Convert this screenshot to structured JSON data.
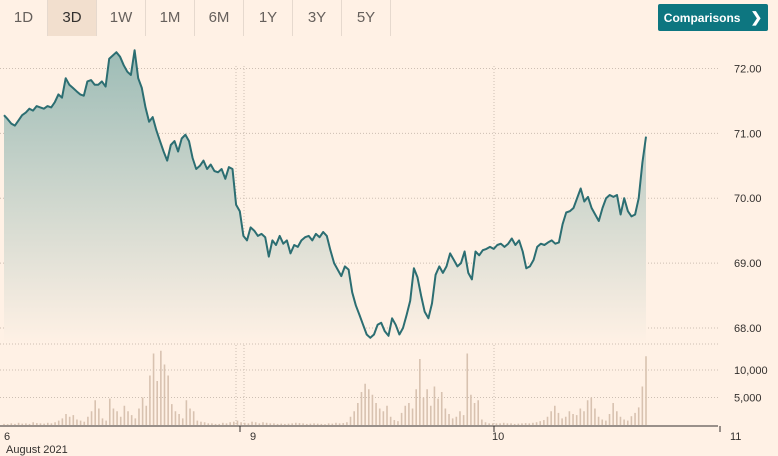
{
  "toolbar": {
    "tabs": [
      {
        "label": "1D",
        "active": false
      },
      {
        "label": "3D",
        "active": true
      },
      {
        "label": "1W",
        "active": false
      },
      {
        "label": "1M",
        "active": false
      },
      {
        "label": "6M",
        "active": false
      },
      {
        "label": "1Y",
        "active": false
      },
      {
        "label": "3Y",
        "active": false
      },
      {
        "label": "5Y",
        "active": false
      }
    ],
    "comparisons_label": "Comparisons"
  },
  "colors": {
    "background": "#fff1e5",
    "line": "#2c6e72",
    "area_top": "#9dbcb6",
    "volume_bar": "#d8c2b0",
    "button": "#0d7680"
  },
  "chart_data": {
    "type": "line",
    "x_axis_labels": [
      "6",
      "9",
      "10",
      "11"
    ],
    "x_axis_sublabel": "August 2021",
    "price": {
      "ylim": [
        67.8,
        72.3
      ],
      "ticks": [
        "72.00",
        "71.00",
        "70.00",
        "69.00",
        "68.00"
      ],
      "tick_values": [
        72,
        71,
        70,
        69,
        68
      ],
      "values": [
        71.28,
        71.22,
        71.15,
        71.12,
        71.2,
        71.28,
        71.32,
        71.38,
        71.35,
        71.42,
        71.4,
        71.38,
        71.42,
        71.4,
        71.48,
        71.6,
        71.55,
        71.85,
        71.75,
        71.7,
        71.65,
        71.6,
        71.58,
        71.8,
        71.82,
        71.75,
        71.75,
        71.8,
        71.72,
        72.15,
        72.2,
        72.25,
        72.18,
        72.05,
        71.95,
        71.9,
        72.28,
        71.85,
        71.7,
        71.4,
        71.18,
        71.25,
        71.05,
        70.88,
        70.72,
        70.58,
        70.82,
        70.88,
        70.72,
        70.92,
        70.98,
        70.88,
        70.62,
        70.45,
        70.5,
        70.58,
        70.45,
        70.52,
        70.42,
        70.4,
        70.45,
        70.3,
        70.48,
        70.45,
        69.9,
        69.8,
        69.42,
        69.35,
        69.55,
        69.5,
        69.42,
        69.45,
        69.4,
        69.1,
        69.35,
        69.28,
        69.42,
        69.3,
        69.35,
        69.15,
        69.28,
        69.25,
        69.35,
        69.4,
        69.42,
        69.35,
        69.45,
        69.4,
        69.48,
        69.42,
        69.2,
        69.0,
        68.9,
        68.8,
        68.95,
        68.9,
        68.55,
        68.35,
        68.2,
        68.05,
        67.9,
        67.85,
        67.9,
        68.05,
        68.08,
        67.95,
        67.88,
        68.15,
        68.05,
        67.9,
        68.0,
        68.2,
        68.42,
        68.92,
        68.78,
        68.5,
        68.25,
        68.15,
        68.38,
        68.82,
        68.95,
        68.85,
        68.95,
        69.15,
        69.05,
        68.95,
        69.0,
        69.18,
        68.85,
        68.75,
        69.18,
        69.12,
        69.2,
        69.22,
        69.25,
        69.22,
        69.28,
        69.3,
        69.25,
        69.3,
        69.38,
        69.28,
        69.35,
        69.18,
        68.92,
        68.95,
        69.05,
        69.25,
        69.3,
        69.28,
        69.32,
        69.35,
        69.3,
        69.32,
        69.6,
        69.78,
        69.8,
        69.85,
        70.0,
        70.15,
        69.95,
        70.02,
        69.85,
        69.75,
        69.65,
        69.85,
        70.0,
        70.05,
        70.02,
        70.05,
        69.75,
        70.0,
        69.8,
        69.72,
        69.75,
        70.0,
        70.55,
        70.95
      ],
      "line_color": "#2c6e72"
    },
    "volume": {
      "ylim": [
        0,
        14000
      ],
      "ticks": [
        "10,000",
        "5,000"
      ],
      "tick_values": [
        10000,
        5000
      ],
      "values": [
        200,
        150,
        300,
        200,
        400,
        250,
        300,
        200,
        500,
        350,
        300,
        250,
        400,
        300,
        500,
        800,
        1200,
        2000,
        1500,
        1800,
        1000,
        800,
        600,
        1500,
        2500,
        4500,
        3000,
        1200,
        800,
        4800,
        3000,
        2500,
        1500,
        3500,
        2500,
        1800,
        1200,
        3000,
        5000,
        3500,
        9000,
        13000,
        8000,
        13500,
        11000,
        9000,
        3800,
        2500,
        2000,
        1200,
        4500,
        3000,
        2500,
        800,
        600,
        500,
        300,
        300,
        200,
        200,
        400,
        300,
        500,
        600,
        800,
        500,
        400,
        300,
        600,
        500,
        300,
        500,
        400,
        300,
        300,
        200,
        250,
        200,
        250,
        300,
        400,
        350,
        300,
        200,
        250,
        300,
        250,
        200,
        150,
        300,
        250,
        400,
        300,
        350,
        500,
        1500,
        2500,
        4000,
        6000,
        7500,
        6500,
        5500,
        4000,
        3000,
        2500,
        3500,
        1500,
        900,
        700,
        2200,
        3500,
        4000,
        3000,
        6500,
        12000,
        5000,
        6500,
        3500,
        7000,
        4800,
        6000,
        3000,
        2000,
        1200,
        1500,
        2500,
        1800,
        13000,
        5500,
        4000,
        4500,
        1000,
        500,
        300,
        300,
        300,
        300,
        400,
        300,
        300,
        200,
        250,
        300,
        350,
        300,
        400,
        500,
        700,
        900,
        1500,
        2500,
        3500,
        2200,
        1200,
        1500,
        2500,
        2000,
        1800,
        3000,
        2500,
        4500,
        5000,
        3000,
        1500,
        1000,
        800,
        2000,
        4000,
        2500,
        1500,
        1000,
        800,
        1600,
        2200,
        3200,
        7000,
        12500
      ],
      "bar_color": "#d8c2b0"
    }
  }
}
